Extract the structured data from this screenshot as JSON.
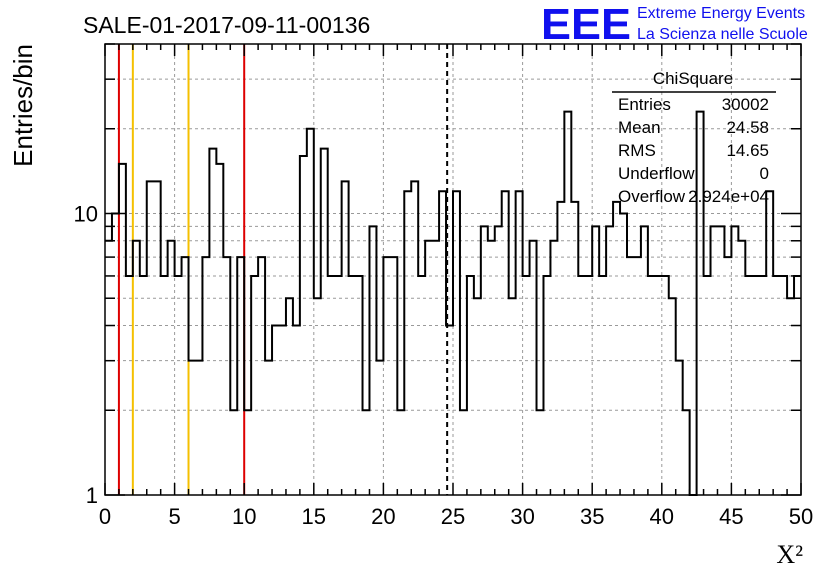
{
  "chart_data": {
    "type": "histogram",
    "title": "SALE-01-2017-09-11-00136",
    "xlabel": "X²",
    "ylabel": "Entries/bin",
    "xlim": [
      0,
      50
    ],
    "ylim": [
      1,
      40
    ],
    "yscale": "log",
    "grid": true,
    "bin_width": 0.5,
    "x_ticks": [
      0,
      5,
      10,
      15,
      20,
      25,
      30,
      35,
      40,
      45,
      50
    ],
    "x_tick_labels": [
      "0",
      "5",
      "10",
      "15",
      "20",
      "25",
      "30",
      "35",
      "40",
      "45",
      "50"
    ],
    "y_ticks": [
      1,
      10
    ],
    "y_tick_labels": [
      "1",
      "10"
    ],
    "values": [
      8,
      10,
      15,
      6,
      8,
      6,
      13,
      13,
      6,
      8,
      6,
      7,
      3,
      3,
      7,
      17,
      15,
      7,
      2,
      7,
      2,
      6,
      7,
      3,
      4,
      4,
      5,
      4,
      16,
      20,
      5,
      17,
      6,
      6,
      13,
      6,
      6,
      2,
      9,
      3,
      7,
      7,
      2,
      12,
      13,
      6,
      8,
      8,
      12,
      4,
      12,
      2,
      6,
      5,
      9,
      8,
      9,
      12,
      5,
      12,
      6,
      8,
      2,
      6,
      8,
      11,
      23,
      11,
      6,
      6,
      9,
      6,
      9,
      11,
      10,
      7,
      7,
      9,
      6,
      6,
      6,
      5,
      3,
      2,
      1,
      23,
      6,
      9,
      9,
      7,
      9,
      8,
      6,
      6,
      6,
      12,
      6,
      6,
      5,
      6
    ],
    "vlines": [
      {
        "x": 1,
        "color": "#dd0000",
        "style": "solid"
      },
      {
        "x": 2,
        "color": "#f5c000",
        "style": "solid"
      },
      {
        "x": 6,
        "color": "#f5c000",
        "style": "solid"
      },
      {
        "x": 10,
        "color": "#dd0000",
        "style": "solid"
      },
      {
        "x": 24.58,
        "color": "#000000",
        "style": "dashed"
      }
    ],
    "stats": {
      "title": "ChiSquare",
      "rows": [
        {
          "label": "Entries",
          "value": "30002"
        },
        {
          "label": "Mean",
          "value": "24.58"
        },
        {
          "label": "RMS",
          "value": "14.65"
        },
        {
          "label": "Underflow",
          "value": "0"
        },
        {
          "label": "Overflow",
          "value": "2.924e+04"
        }
      ]
    }
  },
  "logo": {
    "text": "EEE",
    "line1": "Extreme Energy Events",
    "line2": "La Scienza nelle Scuole",
    "color": "#1010ee"
  }
}
